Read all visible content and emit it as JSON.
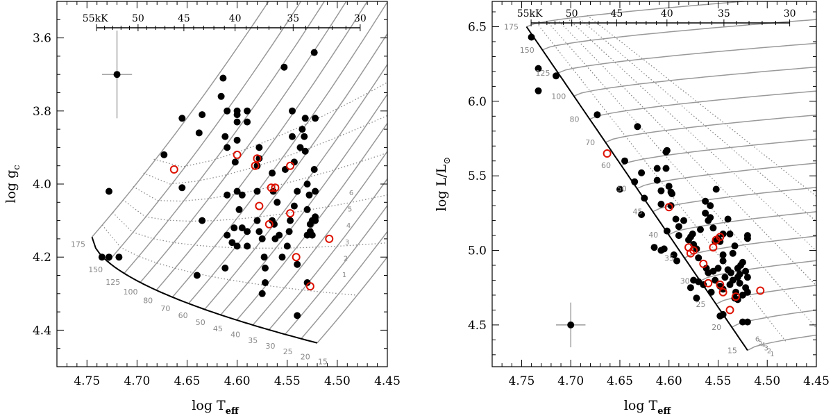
{
  "figure": {
    "panels": [
      "gravity",
      "hrd"
    ]
  },
  "colors": {
    "track": "#999999",
    "isochrone": "#8a8a8a",
    "zams": "#000000",
    "star_filled": "#000000",
    "star_open": "#dd1100",
    "track_label": "#888888"
  },
  "chart_data": [
    {
      "type": "scatter",
      "xlabel": "log T",
      "xlabel_sub": "eff",
      "ylabel": "log g",
      "ylabel_sub": "c",
      "xlim": [
        4.78,
        4.45
      ],
      "ylim": [
        4.5,
        3.5
      ],
      "x_inverted": true,
      "y_inverted": true,
      "xticks": [
        "4.75",
        "4.70",
        "4.65",
        "4.60",
        "4.55",
        "4.50",
        "4.45"
      ],
      "yticks": [
        "3.6",
        "3.8",
        "4.0",
        "4.2",
        "4.4"
      ],
      "top_axis": {
        "labels": [
          "55kK",
          "50",
          "45",
          "40",
          "35",
          "30"
        ],
        "teff_kK": [
          55,
          50,
          45,
          40,
          35,
          30
        ]
      },
      "track_masses": [
        "175",
        "150",
        "125",
        "100",
        "80",
        "70",
        "60",
        "50",
        "45",
        "40",
        "35",
        "30",
        "25",
        "20",
        "15"
      ],
      "isochrone_labels": [
        "1",
        "2",
        "3",
        "4",
        "5",
        "6"
      ],
      "error_bar": {
        "x": 4.72,
        "y": 3.7,
        "dx": 0.015,
        "dy": 0.12
      },
      "series": [
        {
          "marker": "filled",
          "points": [
            [
              4.735,
              4.2
            ],
            [
              4.728,
              4.2
            ],
            [
              4.718,
              4.2
            ],
            [
              4.728,
              4.02
            ],
            [
              4.673,
              3.92
            ],
            [
              4.655,
              3.82
            ],
            [
              4.655,
              4.01
            ],
            [
              4.638,
              3.86
            ],
            [
              4.635,
              3.81
            ],
            [
              4.635,
              4.1
            ],
            [
              4.64,
              4.25
            ],
            [
              4.614,
              3.71
            ],
            [
              4.616,
              3.76
            ],
            [
              4.61,
              3.8
            ],
            [
              4.612,
              3.87
            ],
            [
              4.61,
              3.9
            ],
            [
              4.61,
              4.03
            ],
            [
              4.61,
              4.14
            ],
            [
              4.612,
              4.23
            ],
            [
              4.603,
              4.12
            ],
            [
              4.605,
              4.16
            ],
            [
              4.602,
              3.94
            ],
            [
              4.6,
              3.8
            ],
            [
              4.6,
              3.81
            ],
            [
              4.6,
              3.83
            ],
            [
              4.6,
              3.88
            ],
            [
              4.59,
              3.8
            ],
            [
              4.59,
              3.83
            ],
            [
              4.6,
              4.02
            ],
            [
              4.598,
              4.07
            ],
            [
              4.595,
              4.03
            ],
            [
              4.595,
              4.12
            ],
            [
              4.59,
              4.13
            ],
            [
              4.59,
              4.17
            ],
            [
              4.6,
              4.17
            ],
            [
              4.578,
              3.9
            ],
            [
              4.578,
              3.93
            ],
            [
              4.58,
              3.95
            ],
            [
              4.58,
              4.02
            ],
            [
              4.58,
              4.1
            ],
            [
              4.578,
              4.13
            ],
            [
              4.575,
              4.15
            ],
            [
              4.573,
              4.2
            ],
            [
              4.572,
              4.23
            ],
            [
              4.572,
              4.27
            ],
            [
              4.575,
              4.3
            ],
            [
              4.565,
              3.97
            ],
            [
              4.564,
              4.02
            ],
            [
              4.565,
              4.1
            ],
            [
              4.563,
              4.11
            ],
            [
              4.562,
              4.15
            ],
            [
              4.56,
              4.05
            ],
            [
              4.558,
              4.14
            ],
            [
              4.555,
              4.2
            ],
            [
              4.553,
              3.68
            ],
            [
              4.552,
              3.96
            ],
            [
              4.55,
              4.17
            ],
            [
              4.548,
              4.13
            ],
            [
              4.547,
              4.1
            ],
            [
              4.545,
              3.8
            ],
            [
              4.545,
              3.87
            ],
            [
              4.543,
              3.94
            ],
            [
              4.543,
              4.06
            ],
            [
              4.54,
              4.02
            ],
            [
              4.54,
              4.22
            ],
            [
              4.54,
              4.36
            ],
            [
              4.537,
              3.9
            ],
            [
              4.535,
              3.85
            ],
            [
              4.533,
              3.87
            ],
            [
              4.532,
              3.82
            ],
            [
              4.532,
              3.91
            ],
            [
              4.53,
              4.0
            ],
            [
              4.53,
              4.07
            ],
            [
              4.53,
              4.14
            ],
            [
              4.53,
              4.27
            ],
            [
              4.528,
              4.03
            ],
            [
              4.527,
              4.11
            ],
            [
              4.527,
              4.13
            ],
            [
              4.525,
              4.1
            ],
            [
              4.525,
              4.14
            ],
            [
              4.523,
              3.64
            ],
            [
              4.522,
              3.82
            ],
            [
              4.523,
              3.96
            ],
            [
              4.522,
              4.02
            ],
            [
              4.522,
              4.09
            ],
            [
              4.522,
              4.1
            ]
          ]
        },
        {
          "marker": "open",
          "points": [
            [
              4.663,
              3.96
            ],
            [
              4.6,
              3.92
            ],
            [
              4.582,
              3.95
            ],
            [
              4.58,
              3.93
            ],
            [
              4.578,
              4.06
            ],
            [
              4.566,
              4.01
            ],
            [
              4.562,
              4.01
            ],
            [
              4.568,
              4.11
            ],
            [
              4.547,
              3.95
            ],
            [
              4.547,
              4.08
            ],
            [
              4.541,
              4.2
            ],
            [
              4.527,
              4.28
            ],
            [
              4.508,
              4.15
            ]
          ]
        }
      ]
    },
    {
      "type": "scatter",
      "xlabel": "log T",
      "xlabel_sub": "eff",
      "ylabel": "log L/L",
      "ylabel_sub": "⊙",
      "xlim": [
        4.78,
        4.45
      ],
      "ylim": [
        4.22,
        6.67
      ],
      "x_inverted": true,
      "xticks": [
        "4.75",
        "4.70",
        "4.65",
        "4.60",
        "4.55",
        "4.50",
        "4.45"
      ],
      "yticks": [
        "4.5",
        "5.0",
        "5.5",
        "6.0",
        "6.5"
      ],
      "top_axis": {
        "labels": [
          "55kK",
          "50",
          "45",
          "40",
          "35",
          "30"
        ],
        "teff_kK": [
          55,
          50,
          45,
          40,
          35,
          30
        ]
      },
      "track_masses": [
        "175",
        "150",
        "125",
        "100",
        "80",
        "70",
        "60",
        "50",
        "45",
        "40",
        "35",
        "30",
        "25",
        "20",
        "15"
      ],
      "isochrone_labels": [
        "1",
        "2",
        "3",
        "4",
        "5",
        "6"
      ],
      "error_bar": {
        "x": 4.7,
        "y": 4.5,
        "dx": 0.015,
        "dy": 0.15
      },
      "series": [
        {
          "marker": "filled",
          "points": [
            [
              4.74,
              6.43
            ],
            [
              4.733,
              6.22
            ],
            [
              4.715,
              6.17
            ],
            [
              4.733,
              6.07
            ],
            [
              4.673,
              5.91
            ],
            [
              4.632,
              5.83
            ],
            [
              4.645,
              5.6
            ],
            [
              4.635,
              5.46
            ],
            [
              4.628,
              5.52
            ],
            [
              4.65,
              5.41
            ],
            [
              4.625,
              5.35
            ],
            [
              4.628,
              5.24
            ],
            [
              4.612,
              5.55
            ],
            [
              4.612,
              5.47
            ],
            [
              4.608,
              5.4
            ],
            [
              4.603,
              5.66
            ],
            [
              4.602,
              5.67
            ],
            [
              4.603,
              5.55
            ],
            [
              4.6,
              5.43
            ],
            [
              4.598,
              5.39
            ],
            [
              4.598,
              5.3
            ],
            [
              4.597,
              5.38
            ],
            [
              4.593,
              5.21
            ],
            [
              4.59,
              5.16
            ],
            [
              4.59,
              5.1
            ],
            [
              4.602,
              5.13
            ],
            [
              4.608,
              5.31
            ],
            [
              4.615,
              5.02
            ],
            [
              4.608,
              5.0
            ],
            [
              4.605,
              5.01
            ],
            [
              4.595,
              4.97
            ],
            [
              4.592,
              4.93
            ],
            [
              4.585,
              5.2
            ],
            [
              4.58,
              5.07
            ],
            [
              4.578,
              5.09
            ],
            [
              4.576,
              5.11
            ],
            [
              4.575,
              5.04
            ],
            [
              4.572,
              5.01
            ],
            [
              4.57,
              4.95
            ],
            [
              4.568,
              5.14
            ],
            [
              4.563,
              5.25
            ],
            [
              4.563,
              5.33
            ],
            [
              4.56,
              5.2
            ],
            [
              4.558,
              5.22
            ],
            [
              4.558,
              5.3
            ],
            [
              4.555,
              5.15
            ],
            [
              4.553,
              5.06
            ],
            [
              4.552,
              5.41
            ],
            [
              4.55,
              5.08
            ],
            [
              4.548,
              5.06
            ],
            [
              4.545,
              5.11
            ],
            [
              4.545,
              4.97
            ],
            [
              4.545,
              4.93
            ],
            [
              4.54,
              5.21
            ],
            [
              4.538,
              5.11
            ],
            [
              4.535,
              4.98
            ],
            [
              4.533,
              5.03
            ],
            [
              4.53,
              4.88
            ],
            [
              4.53,
              4.82
            ],
            [
              4.528,
              4.84
            ],
            [
              4.527,
              4.9
            ],
            [
              4.525,
              4.92
            ],
            [
              4.522,
              4.86
            ],
            [
              4.52,
              4.82
            ],
            [
              4.52,
              5.08
            ],
            [
              4.52,
              5.1
            ],
            [
              4.575,
              4.8
            ],
            [
              4.578,
              4.75
            ],
            [
              4.572,
              4.68
            ],
            [
              4.57,
              4.79
            ],
            [
              4.565,
              4.77
            ],
            [
              4.562,
              4.88
            ],
            [
              4.56,
              4.85
            ],
            [
              4.557,
              4.72
            ],
            [
              4.555,
              4.86
            ],
            [
              4.553,
              4.8
            ],
            [
              4.55,
              4.88
            ],
            [
              4.548,
              4.76
            ],
            [
              4.545,
              4.74
            ],
            [
              4.543,
              4.82
            ],
            [
              4.54,
              4.87
            ],
            [
              4.538,
              4.77
            ],
            [
              4.537,
              4.85
            ],
            [
              4.535,
              4.8
            ],
            [
              4.533,
              4.68
            ],
            [
              4.532,
              4.72
            ],
            [
              4.53,
              4.67
            ],
            [
              4.528,
              4.78
            ],
            [
              4.525,
              4.7
            ],
            [
              4.522,
              4.75
            ],
            [
              4.52,
              4.72
            ],
            [
              4.52,
              4.52
            ],
            [
              4.525,
              4.52
            ],
            [
              4.545,
              4.57
            ],
            [
              4.548,
              4.56
            ]
          ]
        },
        {
          "marker": "open",
          "points": [
            [
              4.663,
              5.65
            ],
            [
              4.6,
              5.29
            ],
            [
              4.58,
              5.02
            ],
            [
              4.578,
              4.98
            ],
            [
              4.575,
              5.0
            ],
            [
              4.565,
              4.91
            ],
            [
              4.56,
              4.78
            ],
            [
              4.555,
              5.02
            ],
            [
              4.552,
              5.07
            ],
            [
              4.548,
              5.09
            ],
            [
              4.548,
              4.77
            ],
            [
              4.545,
              4.72
            ],
            [
              4.538,
              4.6
            ],
            [
              4.532,
              4.69
            ],
            [
              4.507,
              4.73
            ]
          ]
        }
      ]
    }
  ]
}
